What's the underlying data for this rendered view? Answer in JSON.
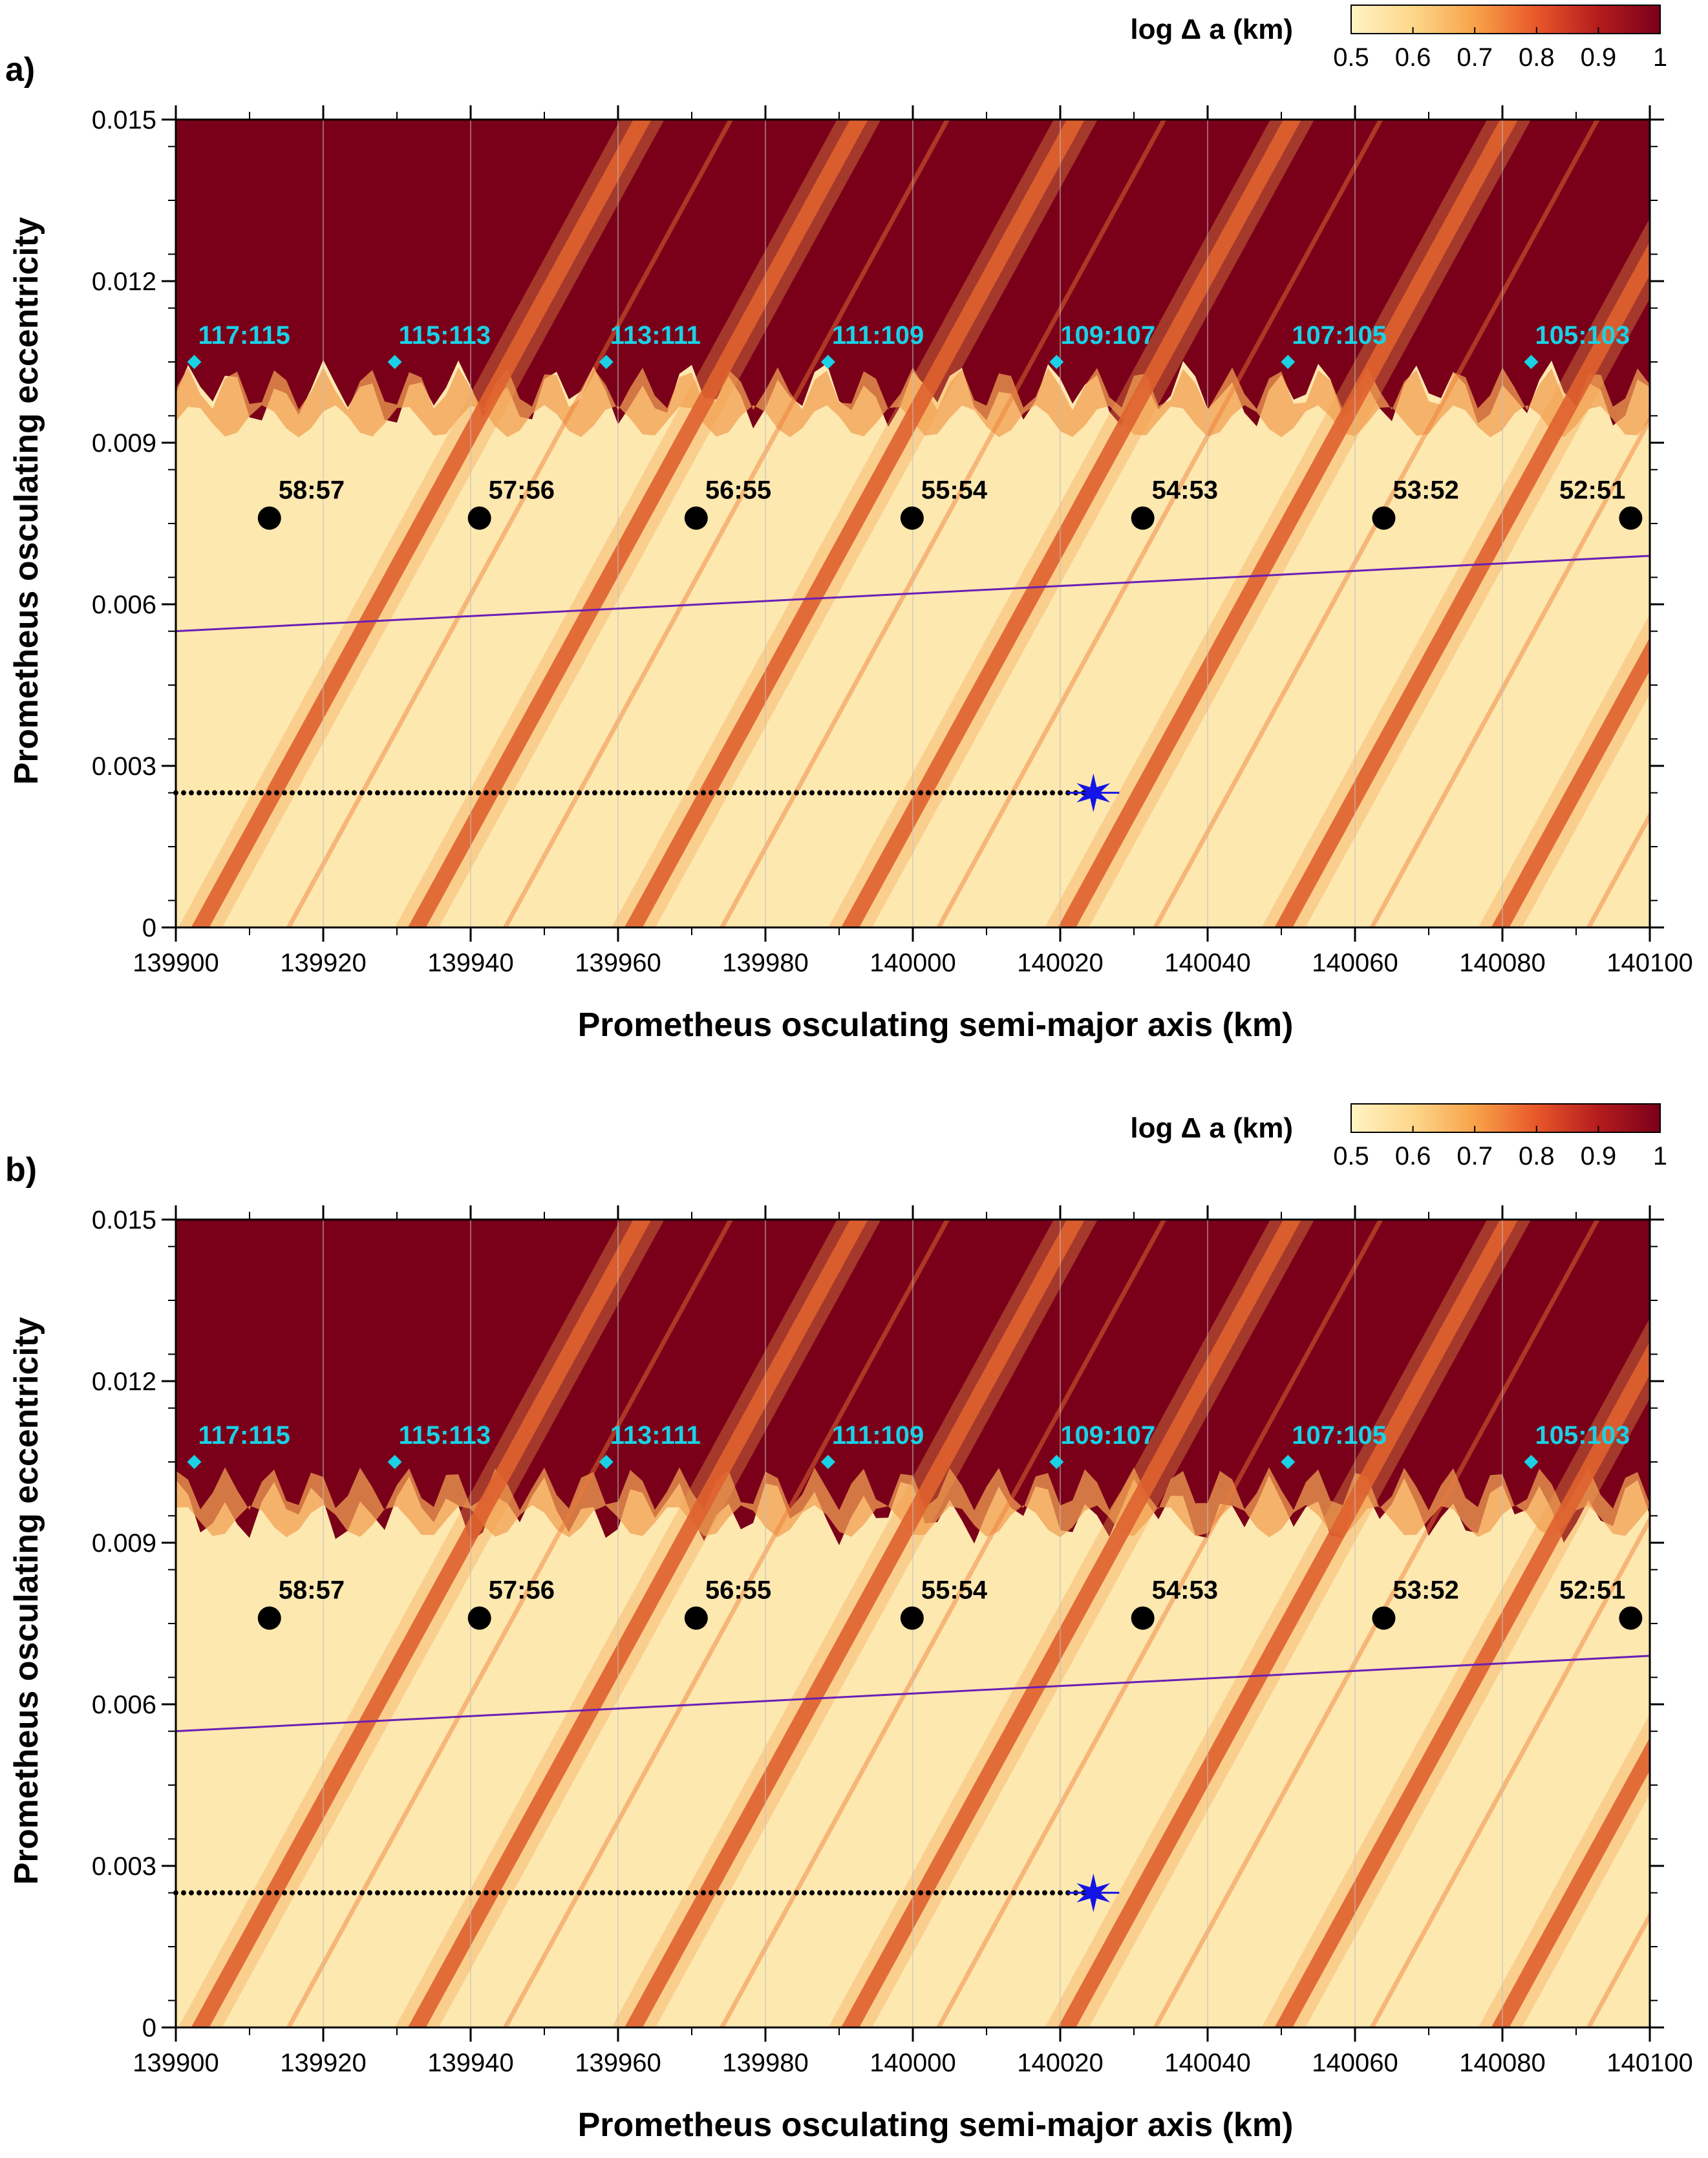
{
  "chart_data": [
    {
      "type": "heatmap",
      "panel_label": "a)",
      "xlabel": "Prometheus osculating semi-major axis (km)",
      "ylabel": "Prometheus osculating eccentricity",
      "xlim": [
        139900,
        140100
      ],
      "ylim": [
        0,
        0.015
      ],
      "x_ticks": [
        139900,
        139920,
        139940,
        139960,
        139980,
        140000,
        140020,
        140040,
        140060,
        140080,
        140100
      ],
      "x_tick_labels": [
        "139900",
        "139920",
        "139940",
        "139960",
        "139980",
        "140000",
        "140020",
        "140040",
        "140060",
        "140080",
        "140100"
      ],
      "y_ticks": [
        0,
        0.003,
        0.006,
        0.009,
        0.012,
        0.015
      ],
      "y_tick_labels": [
        "0",
        "0.003",
        "0.006",
        "0.009",
        "0.012",
        "0.015"
      ],
      "grid": true,
      "colorbar": {
        "title": "log Δ a (km)",
        "range": [
          0.5,
          1
        ],
        "ticks": [
          0.5,
          0.6,
          0.7,
          0.8,
          0.9,
          1
        ],
        "tick_labels": [
          "0.5",
          "0.6",
          "0.7",
          "0.8",
          "0.9",
          "1"
        ],
        "placement": "top-right",
        "colors": [
          "#fff3c4",
          "#fdd78a",
          "#f8a24a",
          "#e8572a",
          "#b41c1e",
          "#7a0019"
        ]
      },
      "first_order_resonances": [
        {
          "label": "58:57",
          "a": 139912.7,
          "e": 0.0076
        },
        {
          "label": "57:56",
          "a": 139941.2,
          "e": 0.0076
        },
        {
          "label": "56:55",
          "a": 139970.6,
          "e": 0.0076
        },
        {
          "label": "55:54",
          "a": 139999.9,
          "e": 0.0076
        },
        {
          "label": "54:53",
          "a": 140031.2,
          "e": 0.0076
        },
        {
          "label": "53:52",
          "a": 140063.9,
          "e": 0.0076
        },
        {
          "label": "52:51",
          "a": 140097.4,
          "e": 0.0076
        }
      ],
      "second_order_resonances": [
        {
          "label": "117:115",
          "a": 139902.5,
          "e": 0.0105
        },
        {
          "label": "115:113",
          "a": 139929.7,
          "e": 0.0105
        },
        {
          "label": "113:111",
          "a": 139958.4,
          "e": 0.0105
        },
        {
          "label": "111:109",
          "a": 139988.5,
          "e": 0.0105
        },
        {
          "label": "109:107",
          "a": 140019.5,
          "e": 0.0105
        },
        {
          "label": "107:105",
          "a": 140050.9,
          "e": 0.0105
        },
        {
          "label": "105:103",
          "a": 140083.9,
          "e": 0.0105
        }
      ],
      "purple_line": {
        "x": [
          139900,
          140100
        ],
        "y": [
          0.0055,
          0.0069
        ],
        "color": "#6a1fb5"
      },
      "dotted_line": {
        "x": [
          139900,
          140024.5
        ],
        "y": [
          0.0025,
          0.0025
        ]
      },
      "star": {
        "a": 140024.5,
        "e": 0.0025,
        "color": "#1414e6"
      },
      "resonance_band_centers_at_e0": [
        139903.3,
        139932.7,
        139962.1,
        139991.5,
        140020.9,
        140050.3,
        140079.7
      ]
    },
    {
      "type": "heatmap",
      "panel_label": "b)",
      "xlabel": "Prometheus osculating semi-major axis (km)",
      "ylabel": "Prometheus osculating eccentricity",
      "xlim": [
        139900,
        140100
      ],
      "ylim": [
        0,
        0.015
      ],
      "x_ticks": [
        139900,
        139920,
        139940,
        139960,
        139980,
        140000,
        140020,
        140040,
        140060,
        140080,
        140100
      ],
      "x_tick_labels": [
        "139900",
        "139920",
        "139940",
        "139960",
        "139980",
        "140000",
        "140020",
        "140040",
        "140060",
        "140080",
        "140100"
      ],
      "y_ticks": [
        0,
        0.003,
        0.006,
        0.009,
        0.012,
        0.015
      ],
      "y_tick_labels": [
        "0",
        "0.003",
        "0.006",
        "0.009",
        "0.012",
        "0.015"
      ],
      "grid": true,
      "colorbar": {
        "title": "log Δ a (km)",
        "range": [
          0.5,
          1
        ],
        "ticks": [
          0.5,
          0.6,
          0.7,
          0.8,
          0.9,
          1
        ],
        "tick_labels": [
          "0.5",
          "0.6",
          "0.7",
          "0.8",
          "0.9",
          "1"
        ],
        "placement": "top-right",
        "colors": [
          "#fff3c4",
          "#fdd78a",
          "#f8a24a",
          "#e8572a",
          "#b41c1e",
          "#7a0019"
        ]
      },
      "first_order_resonances": [
        {
          "label": "58:57",
          "a": 139912.7,
          "e": 0.0076
        },
        {
          "label": "57:56",
          "a": 139941.2,
          "e": 0.0076
        },
        {
          "label": "56:55",
          "a": 139970.6,
          "e": 0.0076
        },
        {
          "label": "55:54",
          "a": 139999.9,
          "e": 0.0076
        },
        {
          "label": "54:53",
          "a": 140031.2,
          "e": 0.0076
        },
        {
          "label": "53:52",
          "a": 140063.9,
          "e": 0.0076
        },
        {
          "label": "52:51",
          "a": 140097.4,
          "e": 0.0076
        }
      ],
      "second_order_resonances": [
        {
          "label": "117:115",
          "a": 139902.5,
          "e": 0.0105
        },
        {
          "label": "115:113",
          "a": 139929.7,
          "e": 0.0105
        },
        {
          "label": "113:111",
          "a": 139958.4,
          "e": 0.0105
        },
        {
          "label": "111:109",
          "a": 139988.5,
          "e": 0.0105
        },
        {
          "label": "109:107",
          "a": 140019.5,
          "e": 0.0105
        },
        {
          "label": "107:105",
          "a": 140050.9,
          "e": 0.0105
        },
        {
          "label": "105:103",
          "a": 140083.9,
          "e": 0.0105
        }
      ],
      "purple_line": {
        "x": [
          139900,
          140100
        ],
        "y": [
          0.0055,
          0.0069
        ],
        "color": "#6a1fb5"
      },
      "dotted_line": {
        "x": [
          139900,
          140024.5
        ],
        "y": [
          0.0025,
          0.0025
        ]
      },
      "star": {
        "a": 140024.5,
        "e": 0.0025,
        "color": "#1414e6"
      },
      "resonance_band_centers_at_e0": [
        139903.3,
        139932.7,
        139962.1,
        139991.5,
        140020.9,
        140050.3,
        140079.7
      ]
    }
  ]
}
